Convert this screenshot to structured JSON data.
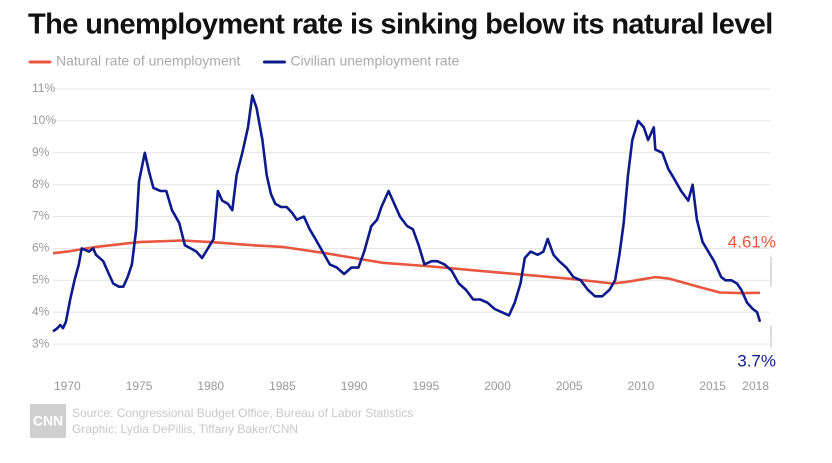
{
  "chart_data": {
    "type": "line",
    "title": "The unemployment rate is sinking below its natural level",
    "source": "Source: Congressional Budget Office, Bureau of Labor Statistics",
    "credit": "Graphic: Lydia DePillis, Tiffany Baker/CNN",
    "logo": "CNN",
    "xlim": [
      1969,
      2019
    ],
    "xticks": [
      1970,
      1975,
      1980,
      1985,
      1990,
      1995,
      2000,
      2005,
      2010,
      2015,
      2018
    ],
    "ylim": [
      2,
      11
    ],
    "yticks": [
      {
        "value": 3,
        "label": "3%"
      },
      {
        "value": 4,
        "label": "4%"
      },
      {
        "value": 5,
        "label": "5%"
      },
      {
        "value": 6,
        "label": "6%"
      },
      {
        "value": 7,
        "label": "7%"
      },
      {
        "value": 8,
        "label": "8%"
      },
      {
        "value": 9,
        "label": "9%"
      },
      {
        "value": 10,
        "label": "10%"
      },
      {
        "value": 11,
        "label": "11%"
      }
    ],
    "grid": true,
    "legend": "top-left",
    "series": [
      {
        "name": "Natural rate of unemployment",
        "color": "#e8563f",
        "end_label": "4.61%",
        "end_label_position": "above",
        "x": [
          1969,
          1970,
          1972,
          1975,
          1978,
          1980,
          1983,
          1985,
          1988,
          1990,
          1992,
          1995,
          2000,
          2005,
          2008,
          2009,
          2011,
          2012,
          2014,
          2015.5,
          2017,
          2018.3
        ],
        "values": [
          5.85,
          5.9,
          6.05,
          6.2,
          6.25,
          6.2,
          6.1,
          6.05,
          5.85,
          5.7,
          5.55,
          5.45,
          5.25,
          5.05,
          4.9,
          4.95,
          5.1,
          5.05,
          4.8,
          4.62,
          4.6,
          4.61
        ]
      },
      {
        "name": "Civilian unemployment rate",
        "color": "#0d1a8c",
        "end_label": "3.7%",
        "end_label_position": "below",
        "x": [
          1969.0,
          1969.3,
          1969.5,
          1969.7,
          1969.9,
          1970.2,
          1970.5,
          1970.8,
          1971.0,
          1971.5,
          1971.8,
          1972.0,
          1972.5,
          1972.9,
          1973.2,
          1973.6,
          1973.9,
          1974.2,
          1974.5,
          1974.8,
          1975.0,
          1975.4,
          1975.7,
          1976.0,
          1976.5,
          1976.9,
          1977.3,
          1977.8,
          1978.2,
          1978.6,
          1979.0,
          1979.4,
          1979.8,
          1980.2,
          1980.5,
          1980.8,
          1981.2,
          1981.5,
          1981.8,
          1982.2,
          1982.6,
          1982.9,
          1983.2,
          1983.6,
          1983.9,
          1984.2,
          1984.5,
          1984.9,
          1985.3,
          1985.7,
          1986.0,
          1986.5,
          1986.9,
          1987.3,
          1987.8,
          1988.3,
          1988.8,
          1989.3,
          1989.8,
          1990.3,
          1990.7,
          1991.2,
          1991.6,
          1991.9,
          1992.4,
          1992.8,
          1993.2,
          1993.7,
          1994.1,
          1994.5,
          1994.9,
          1995.4,
          1995.8,
          1996.3,
          1996.8,
          1997.3,
          1997.8,
          1998.3,
          1998.8,
          1999.3,
          1999.8,
          2000.3,
          2000.8,
          2001.2,
          2001.6,
          2001.9,
          2002.3,
          2002.8,
          2003.2,
          2003.5,
          2003.9,
          2004.3,
          2004.8,
          2005.3,
          2005.8,
          2006.3,
          2006.8,
          2007.3,
          2007.8,
          2008.2,
          2008.5,
          2008.8,
          2009.1,
          2009.4,
          2009.8,
          2010.2,
          2010.5,
          2010.9,
          2011.0,
          2011.5,
          2011.9,
          2012.3,
          2012.8,
          2013.3,
          2013.6,
          2013.9,
          2014.3,
          2014.7,
          2015.1,
          2015.6,
          2015.9,
          2016.3,
          2016.7,
          2017.0,
          2017.4,
          2017.8,
          2018.1,
          2018.3
        ],
        "values": [
          3.4,
          3.5,
          3.6,
          3.5,
          3.7,
          4.4,
          5.0,
          5.5,
          6.0,
          5.9,
          6.0,
          5.8,
          5.6,
          5.2,
          4.9,
          4.8,
          4.8,
          5.1,
          5.5,
          6.6,
          8.1,
          9.0,
          8.4,
          7.9,
          7.8,
          7.8,
          7.2,
          6.8,
          6.1,
          6.0,
          5.9,
          5.7,
          6.0,
          6.3,
          7.8,
          7.5,
          7.4,
          7.2,
          8.3,
          9.0,
          9.8,
          10.8,
          10.4,
          9.4,
          8.3,
          7.7,
          7.4,
          7.3,
          7.3,
          7.1,
          6.9,
          7.0,
          6.6,
          6.3,
          5.9,
          5.5,
          5.4,
          5.2,
          5.4,
          5.4,
          5.9,
          6.7,
          6.9,
          7.3,
          7.8,
          7.4,
          7.0,
          6.7,
          6.6,
          6.1,
          5.5,
          5.6,
          5.6,
          5.5,
          5.3,
          4.9,
          4.7,
          4.4,
          4.4,
          4.3,
          4.1,
          4.0,
          3.9,
          4.3,
          4.9,
          5.7,
          5.9,
          5.8,
          5.9,
          6.3,
          5.8,
          5.6,
          5.4,
          5.1,
          5.0,
          4.7,
          4.5,
          4.5,
          4.7,
          5.0,
          5.8,
          6.8,
          8.3,
          9.4,
          10.0,
          9.8,
          9.4,
          9.8,
          9.1,
          9.0,
          8.5,
          8.2,
          7.8,
          7.5,
          8.0,
          6.9,
          6.2,
          5.9,
          5.6,
          5.1,
          5.0,
          5.0,
          4.9,
          4.7,
          4.3,
          4.1,
          4.0,
          3.7
        ]
      }
    ]
  }
}
